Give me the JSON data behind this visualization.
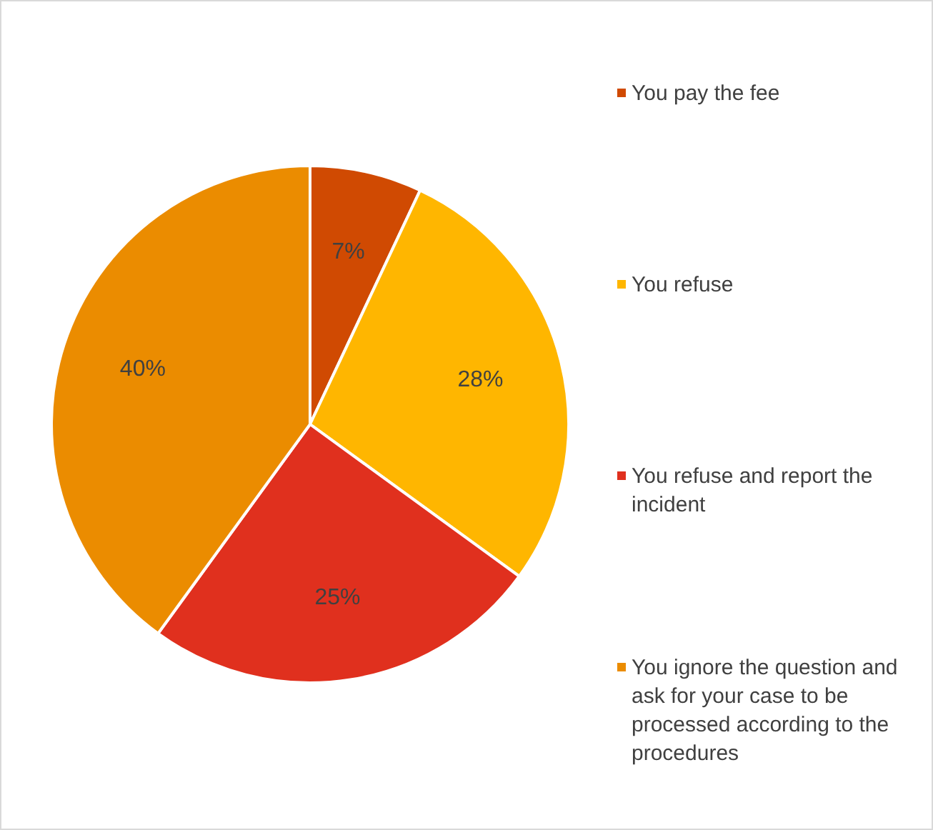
{
  "chart_data": {
    "type": "pie",
    "categories": [
      "You pay the fee",
      "You refuse",
      "You refuse and report the incident",
      "You ignore the question and ask for your case to be processed according to the procedures"
    ],
    "values": [
      7,
      28,
      25,
      40
    ],
    "colors": [
      "#d04a02",
      "#ffb600",
      "#e0301e",
      "#eb8c00"
    ],
    "value_labels": [
      "7%",
      "28%",
      "25%",
      "40%"
    ],
    "legend": "right"
  }
}
